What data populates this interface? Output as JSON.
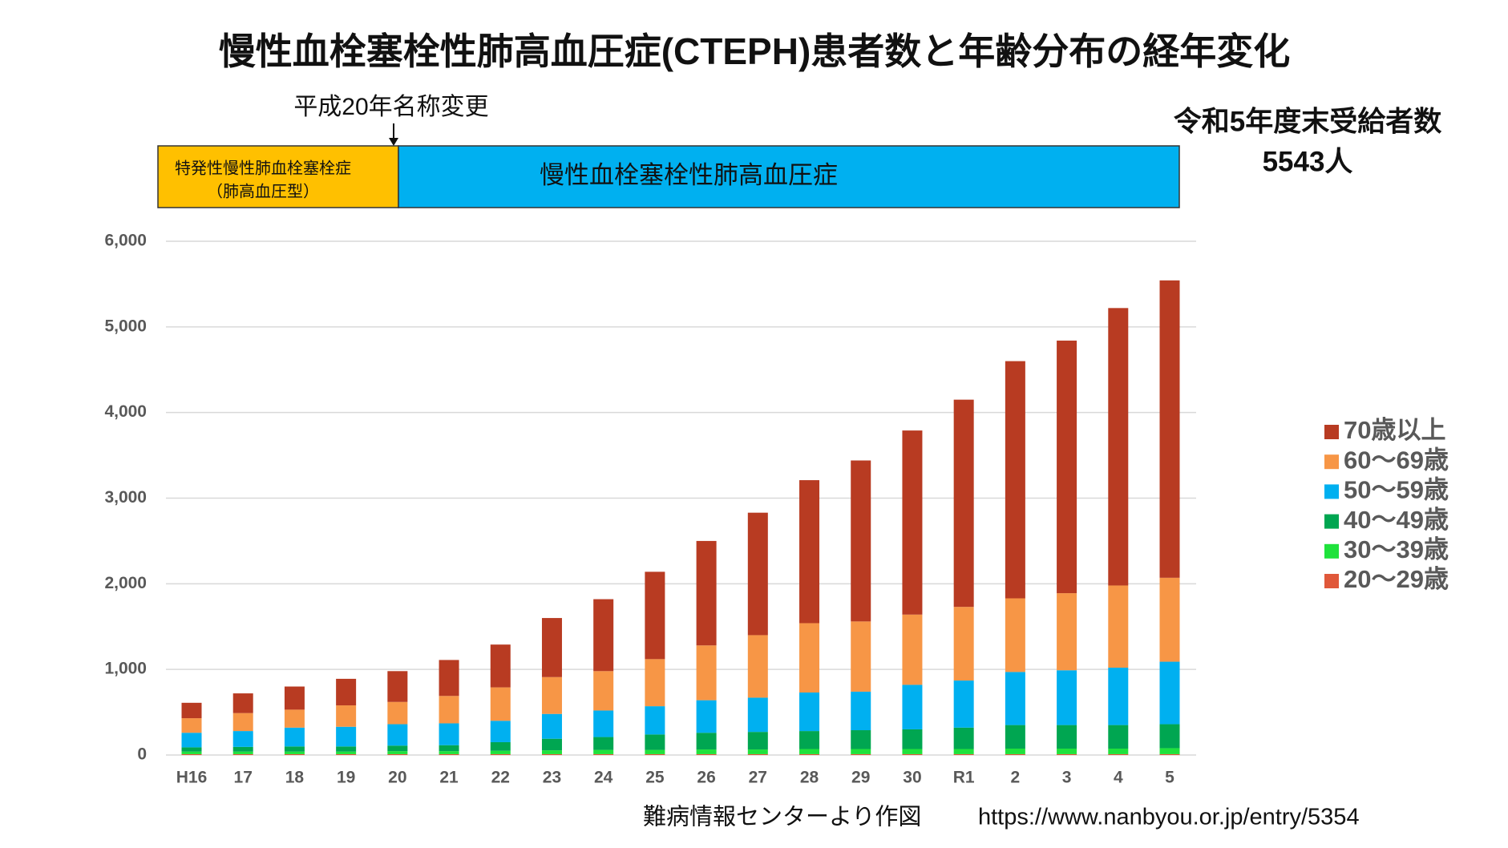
{
  "chart_data": {
    "type": "stacked_bar",
    "title": "慢性血栓塞栓性肺高血圧症(CTEPH)患者数と年齢分布の経年変化",
    "period_note": "平成20年名称変更",
    "old_name_line1": "特発性慢性肺血栓塞栓症",
    "old_name_line2": "（肺高血圧型）",
    "new_name": "慢性血栓塞栓性肺高血圧症",
    "recipients_label": "令和5年度末受給者数",
    "recipients_count": "5543人",
    "source": "難病情報センターより作図",
    "url": "https://www.nanbyou.or.jp/entry/5354",
    "categories": [
      "H16",
      "17",
      "18",
      "19",
      "20",
      "21",
      "22",
      "23",
      "24",
      "25",
      "26",
      "27",
      "28",
      "29",
      "30",
      "R1",
      "2",
      "3",
      "4",
      "5"
    ],
    "series": [
      {
        "name": "20～29歳",
        "color": "#e0583a",
        "values": [
          10,
          10,
          10,
          10,
          10,
          10,
          10,
          10,
          10,
          10,
          10,
          10,
          10,
          10,
          10,
          10,
          10,
          10,
          10,
          10
        ]
      },
      {
        "name": "30～39歳",
        "color": "#1fe23c",
        "values": [
          30,
          30,
          30,
          30,
          35,
          35,
          40,
          45,
          50,
          50,
          55,
          55,
          60,
          60,
          60,
          60,
          65,
          65,
          65,
          70
        ]
      },
      {
        "name": "40～49歳",
        "color": "#00a651",
        "values": [
          50,
          55,
          60,
          60,
          65,
          70,
          100,
          135,
          150,
          180,
          195,
          205,
          210,
          220,
          230,
          250,
          275,
          275,
          275,
          280
        ]
      },
      {
        "name": "50～59歳",
        "color": "#00b0f0",
        "values": [
          170,
          185,
          220,
          230,
          250,
          255,
          250,
          290,
          310,
          330,
          380,
          400,
          450,
          450,
          520,
          550,
          620,
          640,
          670,
          730
        ]
      },
      {
        "name": "60～69歳",
        "color": "#f79646",
        "values": [
          170,
          210,
          210,
          250,
          260,
          320,
          390,
          430,
          460,
          550,
          640,
          730,
          810,
          820,
          820,
          860,
          860,
          900,
          960,
          980
        ]
      },
      {
        "name": "70歳以上",
        "color": "#b83b22",
        "values": [
          180,
          230,
          270,
          310,
          360,
          420,
          500,
          690,
          840,
          1020,
          1220,
          1430,
          1670,
          1880,
          2150,
          2420,
          2770,
          2950,
          3240,
          3473
        ]
      }
    ],
    "ylim": [
      0,
      6000
    ],
    "yticks": [
      0,
      {
        "value": 1000,
        "label": "1,000"
      },
      {
        "value": 2000,
        "label": "2,000"
      },
      {
        "value": 3000,
        "label": "3,000"
      },
      {
        "value": 4000,
        "label": "4,000"
      },
      {
        "value": 5000,
        "label": "5,000"
      },
      {
        "value": 6000,
        "label": "6,000"
      }
    ],
    "grid": true,
    "legend": "right"
  }
}
